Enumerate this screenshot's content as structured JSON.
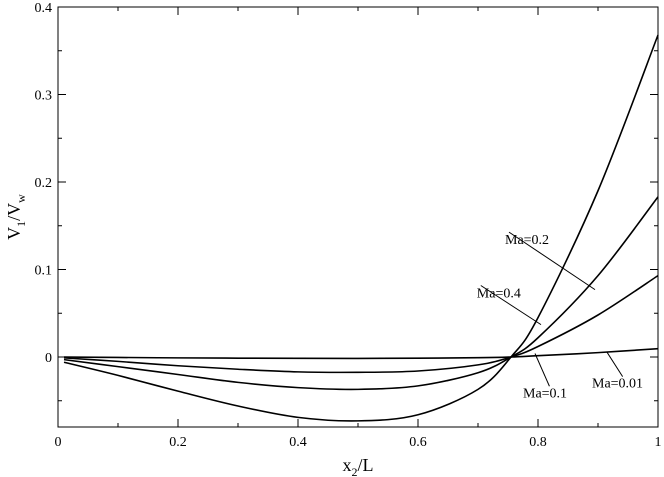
{
  "chart_data": {
    "type": "line",
    "title": "",
    "xlabel": {
      "main": "x",
      "sub": "2",
      "rest": "/L"
    },
    "ylabel": {
      "p1": "V",
      "s1": "1",
      "p2": "/V",
      "s2": "w"
    },
    "xlim": [
      0,
      1
    ],
    "ylim": [
      -0.08,
      0.4
    ],
    "x_major_ticks": [
      0,
      0.2,
      0.4,
      0.6,
      0.8,
      1
    ],
    "x_tick_labels": [
      "0",
      "0.2",
      "0.4",
      "0.6",
      "0.8",
      "1"
    ],
    "x_minor_ticks": [
      0.1,
      0.3,
      0.5,
      0.7,
      0.9
    ],
    "y_major_ticks": [
      0,
      0.1,
      0.2,
      0.3,
      0.4
    ],
    "y_tick_labels": [
      "0",
      "0.1",
      "0.2",
      "0.3",
      "0.4"
    ],
    "y_minor_ticks": [
      -0.05,
      0.05,
      0.15,
      0.25,
      0.35
    ],
    "grid": false,
    "legend": "none",
    "series": [
      {
        "label": "Ma=0.01",
        "x": [
          0.01,
          0.1,
          0.2,
          0.3,
          0.4,
          0.5,
          0.6,
          0.7,
          0.755,
          0.8,
          0.9,
          1.0
        ],
        "y": [
          -0.0001,
          -0.0005,
          -0.001,
          -0.0013,
          -0.0015,
          -0.0016,
          -0.0014,
          -0.0008,
          0.0,
          0.0015,
          0.005,
          0.0095
        ]
      },
      {
        "label": "Ma=0.1",
        "x": [
          0.01,
          0.1,
          0.2,
          0.3,
          0.4,
          0.5,
          0.6,
          0.7,
          0.755,
          0.8,
          0.9,
          1.0
        ],
        "y": [
          -0.001,
          -0.005,
          -0.01,
          -0.014,
          -0.017,
          -0.0175,
          -0.016,
          -0.009,
          0.0,
          0.012,
          0.048,
          0.093
        ]
      },
      {
        "label": "Ma=0.2",
        "x": [
          0.01,
          0.1,
          0.2,
          0.3,
          0.4,
          0.5,
          0.6,
          0.7,
          0.755,
          0.8,
          0.9,
          1.0
        ],
        "y": [
          -0.003,
          -0.011,
          -0.02,
          -0.029,
          -0.035,
          -0.037,
          -0.033,
          -0.018,
          0.0,
          0.022,
          0.093,
          0.183
        ]
      },
      {
        "label": "Ma=0.4",
        "x": [
          0.01,
          0.1,
          0.2,
          0.3,
          0.4,
          0.5,
          0.6,
          0.7,
          0.755,
          0.8,
          0.9,
          1.0
        ],
        "y": [
          -0.006,
          -0.021,
          -0.039,
          -0.056,
          -0.069,
          -0.073,
          -0.066,
          -0.037,
          0.0,
          0.045,
          0.19,
          0.368
        ]
      }
    ],
    "annotations": [
      {
        "text": "Ma=0.2",
        "series": "Ma=0.2",
        "text_x": 0.745,
        "text_y": 0.129,
        "point_x": 0.895,
        "point_y": 0.077
      },
      {
        "text": "Ma=0.4",
        "series": "Ma=0.4",
        "text_x": 0.698,
        "text_y": 0.068,
        "point_x": 0.805,
        "point_y": 0.037
      },
      {
        "text": "Ma=0.1",
        "series": "Ma=0.1",
        "text_x": 0.775,
        "text_y": -0.046,
        "point_x": 0.795,
        "point_y": 0.004
      },
      {
        "text": "Ma=0.01",
        "series": "Ma=0.01",
        "text_x": 0.89,
        "text_y": -0.035,
        "point_x": 0.915,
        "point_y": 0.0055
      }
    ]
  }
}
